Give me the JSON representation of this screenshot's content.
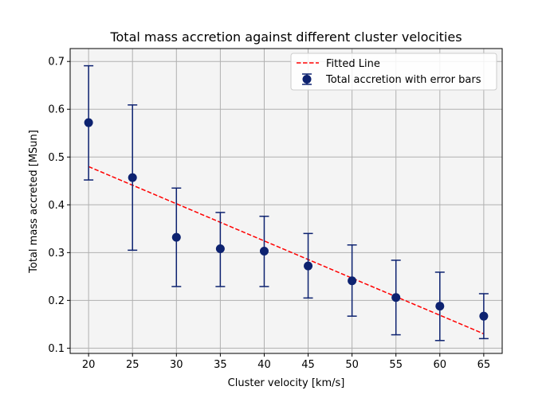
{
  "chart_data": {
    "type": "scatter",
    "title": "Total mass accretion against different cluster velocities",
    "xlabel": "Cluster velocity [km/s]",
    "ylabel": "Total mass accreted [MSun]",
    "xlim": [
      17.9,
      67.1
    ],
    "ylim": [
      0.089,
      0.727
    ],
    "xticks": [
      20,
      25,
      30,
      35,
      40,
      45,
      50,
      55,
      60,
      65
    ],
    "xtick_labels": [
      "20",
      "25",
      "30",
      "35",
      "40",
      "45",
      "50",
      "55",
      "60",
      "65"
    ],
    "yticks": [
      0.1,
      0.2,
      0.3,
      0.4,
      0.5,
      0.6,
      0.7
    ],
    "ytick_labels": [
      "0.1",
      "0.2",
      "0.3",
      "0.4",
      "0.5",
      "0.6",
      "0.7"
    ],
    "grid": true,
    "legend_position": "top-right",
    "series": [
      {
        "name": "Total accretion with error bars",
        "kind": "errorbar-points",
        "color": "#0d2270",
        "x": [
          20,
          25,
          30,
          35,
          40,
          45,
          50,
          55,
          60,
          65
        ],
        "y": [
          0.572,
          0.457,
          0.332,
          0.308,
          0.303,
          0.272,
          0.241,
          0.206,
          0.188,
          0.167
        ],
        "yerr_low": [
          0.452,
          0.305,
          0.229,
          0.229,
          0.229,
          0.205,
          0.167,
          0.128,
          0.116,
          0.12
        ],
        "yerr_high": [
          0.691,
          0.609,
          0.435,
          0.384,
          0.376,
          0.34,
          0.316,
          0.284,
          0.259,
          0.214
        ]
      },
      {
        "name": "Fitted Line",
        "kind": "dashed-line",
        "color": "#ff0000",
        "x": [
          20,
          65
        ],
        "y": [
          0.48,
          0.13
        ]
      }
    ],
    "colors": {
      "plot_background": "#f4f4f4",
      "grid": "#b0b0b0"
    }
  }
}
